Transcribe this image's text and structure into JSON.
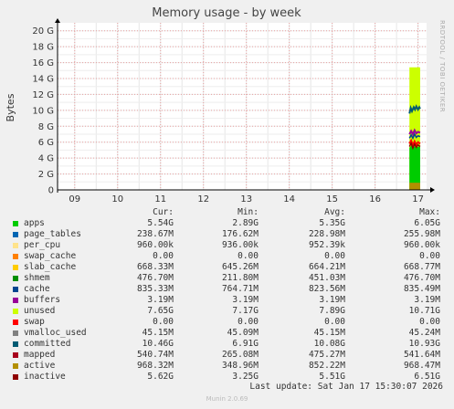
{
  "chart_data": {
    "type": "area",
    "title": "Memory usage - by week",
    "ylabel": "Bytes",
    "side_label": "RRDTOOL / TOBI OETIKER",
    "x_tick_labels": [
      "09",
      "10",
      "11",
      "12",
      "13",
      "14",
      "15",
      "16",
      "17"
    ],
    "y_ticks": [
      {
        "value": 0,
        "label": "0"
      },
      {
        "value": 2,
        "label": "2 G"
      },
      {
        "value": 4,
        "label": "4 G"
      },
      {
        "value": 6,
        "label": "6 G"
      },
      {
        "value": 8,
        "label": "8 G"
      },
      {
        "value": 10,
        "label": "10 G"
      },
      {
        "value": 12,
        "label": "12 G"
      },
      {
        "value": 14,
        "label": "14 G"
      },
      {
        "value": 16,
        "label": "16 G"
      },
      {
        "value": 18,
        "label": "18 G"
      },
      {
        "value": 20,
        "label": "20 G"
      }
    ],
    "ylim": [
      0,
      21
    ],
    "grid": true,
    "data_start_day": 16.8,
    "series_plot": [
      {
        "name": "apps",
        "x": [
          16.8,
          16.85,
          16.9,
          16.95,
          17.0,
          17.05
        ],
        "y": [
          5.3,
          5.6,
          5.4,
          5.5,
          5.4,
          5.5
        ]
      },
      {
        "name": "unused_top",
        "x": [
          16.8,
          16.85,
          16.9,
          16.95,
          17.0,
          17.05
        ],
        "y": [
          15.4,
          15.4,
          15.4,
          15.4,
          15.4,
          15.4
        ]
      },
      {
        "name": "committed",
        "x": [
          16.8,
          16.83,
          16.86,
          16.9,
          16.93,
          16.96,
          17.0,
          17.03,
          17.05
        ],
        "y": [
          9.6,
          10.3,
          9.9,
          10.4,
          10.1,
          10.5,
          10.1,
          10.4,
          10.2
        ]
      },
      {
        "name": "cache_line",
        "x": [
          16.8,
          16.84,
          16.88,
          16.92,
          16.96,
          17.0,
          17.05
        ],
        "y": [
          7.0,
          7.4,
          7.0,
          7.5,
          7.1,
          7.3,
          7.2
        ]
      },
      {
        "name": "swap_line",
        "x": [
          16.8,
          16.84,
          16.88,
          16.92,
          16.96,
          17.0,
          17.05
        ],
        "y": [
          5.8,
          6.2,
          5.6,
          6.1,
          5.7,
          6.0,
          5.8
        ]
      },
      {
        "name": "active_band",
        "x": [
          16.8,
          17.05
        ],
        "y": [
          0.9,
          0.9
        ]
      }
    ],
    "legend_headers": {
      "cur": "Cur:",
      "min": "Min:",
      "avg": "Avg:",
      "max": "Max:"
    },
    "legend": [
      {
        "name": "apps",
        "color": "#00cc00",
        "cur": "5.54G",
        "min": "2.89G",
        "avg": "5.35G",
        "max": "6.05G"
      },
      {
        "name": "page_tables",
        "color": "#0066b3",
        "cur": "238.67M",
        "min": "176.62M",
        "avg": "228.98M",
        "max": "255.98M"
      },
      {
        "name": "per_cpu",
        "color": "#ffe38b",
        "cur": "960.00k",
        "min": "936.00k",
        "avg": "952.39k",
        "max": "960.00k"
      },
      {
        "name": "swap_cache",
        "color": "#ff8000",
        "cur": "0.00",
        "min": "0.00",
        "avg": "0.00",
        "max": "0.00"
      },
      {
        "name": "slab_cache",
        "color": "#ffcc00",
        "cur": "668.33M",
        "min": "645.26M",
        "avg": "664.21M",
        "max": "668.77M"
      },
      {
        "name": "shmem",
        "color": "#008f00",
        "cur": "476.70M",
        "min": "211.80M",
        "avg": "451.03M",
        "max": "476.70M"
      },
      {
        "name": "cache",
        "color": "#00458f",
        "cur": "835.33M",
        "min": "764.71M",
        "avg": "823.56M",
        "max": "835.49M"
      },
      {
        "name": "buffers",
        "color": "#990099",
        "cur": "3.19M",
        "min": "3.19M",
        "avg": "3.19M",
        "max": "3.19M"
      },
      {
        "name": "unused",
        "color": "#ccff00",
        "cur": "7.65G",
        "min": "7.17G",
        "avg": "7.89G",
        "max": "10.71G"
      },
      {
        "name": "swap",
        "color": "#ff0000",
        "cur": "0.00",
        "min": "0.00",
        "avg": "0.00",
        "max": "0.00"
      },
      {
        "name": "vmalloc_used",
        "color": "#808080",
        "cur": "45.15M",
        "min": "45.09M",
        "avg": "45.15M",
        "max": "45.24M"
      },
      {
        "name": "committed",
        "color": "#005b73",
        "cur": "10.46G",
        "min": "6.91G",
        "avg": "10.08G",
        "max": "10.93G"
      },
      {
        "name": "mapped",
        "color": "#a8001d",
        "cur": "540.74M",
        "min": "265.08M",
        "avg": "475.27M",
        "max": "541.64M"
      },
      {
        "name": "active",
        "color": "#b38f00",
        "cur": "968.32M",
        "min": "348.96M",
        "avg": "852.22M",
        "max": "968.47M"
      },
      {
        "name": "inactive",
        "color": "#8f0000",
        "cur": "5.62G",
        "min": "3.25G",
        "avg": "5.51G",
        "max": "6.51G"
      }
    ],
    "last_update": "Last update: Sat Jan 17 15:30:07 2026",
    "footer": "Munin 2.0.69"
  }
}
